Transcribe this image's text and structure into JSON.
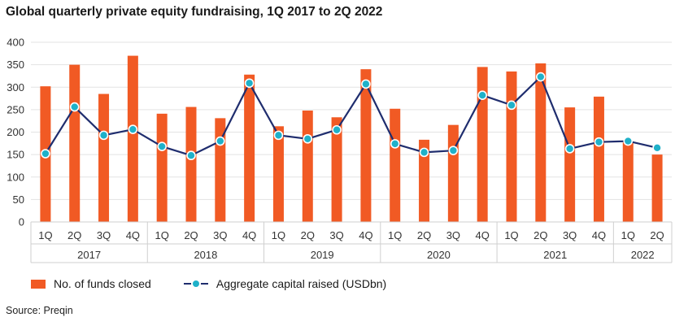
{
  "title": "Global quarterly private equity fundraising, 1Q 2017 to 2Q 2022",
  "source": "Source: Preqin",
  "colors": {
    "bar": "#f15a24",
    "line": "#1f2d6e",
    "marker": "#1fb1c9",
    "grid": "#e3e3e3"
  },
  "chart_data": {
    "type": "bar",
    "title": "Global quarterly private equity fundraising, 1Q 2017 to 2Q 2022",
    "xlabel": "",
    "ylabel": "",
    "ylim": [
      0,
      400
    ],
    "yticks": [
      0,
      50,
      100,
      150,
      200,
      250,
      300,
      350,
      400
    ],
    "grid": true,
    "legend_position": "bottom-left",
    "categories": [
      "1Q",
      "2Q",
      "3Q",
      "4Q",
      "1Q",
      "2Q",
      "3Q",
      "4Q",
      "1Q",
      "2Q",
      "3Q",
      "4Q",
      "1Q",
      "2Q",
      "3Q",
      "4Q",
      "1Q",
      "2Q",
      "3Q",
      "4Q",
      "1Q",
      "2Q"
    ],
    "years": [
      {
        "label": "2017",
        "count": 4
      },
      {
        "label": "2018",
        "count": 4
      },
      {
        "label": "2019",
        "count": 4
      },
      {
        "label": "2020",
        "count": 4
      },
      {
        "label": "2021",
        "count": 4
      },
      {
        "label": "2022",
        "count": 2
      }
    ],
    "series": [
      {
        "name": "No. of funds closed",
        "type": "bar",
        "values": [
          302,
          350,
          285,
          370,
          241,
          256,
          231,
          328,
          213,
          248,
          233,
          340,
          252,
          183,
          216,
          345,
          335,
          353,
          255,
          279,
          177,
          150
        ]
      },
      {
        "name": "Aggregate capital raised (USDbn)",
        "type": "line",
        "values": [
          152,
          256,
          193,
          206,
          168,
          148,
          180,
          309,
          193,
          185,
          205,
          307,
          174,
          155,
          159,
          282,
          260,
          323,
          163,
          178,
          180,
          165
        ]
      }
    ]
  }
}
